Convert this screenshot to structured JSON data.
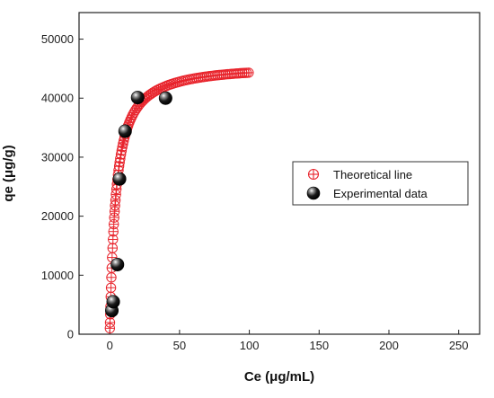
{
  "chart_data": {
    "type": "scatter",
    "xlabel": "Ce (μg/mL)",
    "ylabel": "qe (μg/g)",
    "xlim": [
      -22,
      265
    ],
    "ylim": [
      0,
      54500
    ],
    "x_ticks": [
      0,
      50,
      100,
      150,
      200,
      250
    ],
    "x_tick_labels": [
      "0",
      "50",
      "100",
      "150",
      "200",
      "250"
    ],
    "y_ticks": [
      0,
      10000,
      20000,
      30000,
      40000,
      50000
    ],
    "y_tick_labels": [
      "0",
      "10000",
      "20000",
      "30000",
      "40000",
      "50000"
    ],
    "grid": false,
    "legend_position": "center-right",
    "series": [
      {
        "name": "Theoretical line",
        "marker": "circle-plus",
        "color": "#e8242c",
        "x": [
          0.1,
          0.2,
          0.35,
          0.5,
          0.7,
          0.9,
          1.15,
          1.4,
          1.7,
          2.0,
          2.3,
          2.6,
          2.9,
          3.2,
          3.5,
          3.8,
          4.1,
          4.45,
          4.8,
          5.15,
          5.5,
          5.9,
          6.3,
          6.7,
          7.1,
          7.5,
          8.0,
          8.5,
          9.0,
          9.5,
          10,
          10.6,
          11.2,
          11.8,
          12.5,
          13.2,
          14,
          14.8,
          15.6,
          16.5,
          17.4,
          18.4,
          19.4,
          20.5,
          21.6,
          22.8,
          24,
          25.3,
          26.6,
          28,
          29.4,
          30.8,
          32.2,
          33.6,
          35,
          36.5,
          38,
          39.5,
          41,
          42.5,
          44,
          45.5,
          47,
          48.5,
          50,
          51.5,
          53,
          54.5,
          56,
          57.5,
          59,
          60.5,
          62,
          63.5,
          65,
          66.5,
          68,
          69.5,
          71,
          72.5,
          74,
          75.5,
          77,
          78.5,
          80,
          81.5,
          83,
          84.5,
          86,
          87.5,
          89,
          90.5,
          92,
          93.5,
          95,
          96.5,
          98,
          99.5
        ],
        "y": [
          1009,
          1978,
          3372,
          4696,
          6345,
          7875,
          9625,
          11239,
          13002,
          14603,
          16064,
          17402,
          18633,
          19769,
          20819,
          21794,
          22701,
          23682,
          24586,
          25421,
          26195,
          27018,
          27778,
          28483,
          29138,
          29749,
          30456,
          31106,
          31707,
          32263,
          32780,
          33352,
          33878,
          34364,
          34887,
          35366,
          35869,
          36326,
          36744,
          37172,
          37562,
          37958,
          38318,
          38679,
          39009,
          39336,
          39633,
          39927,
          40195,
          40458,
          40698,
          40919,
          41123,
          41312,
          41487,
          41661,
          41822,
          41972,
          42113,
          42244,
          42367,
          42483,
          42591,
          42694,
          42790,
          42881,
          42967,
          43048,
          43125,
          43198,
          43267,
          43333,
          43395,
          43455,
          43511,
          43565,
          43617,
          43666,
          43713,
          43758,
          43801,
          43842,
          43881,
          43919,
          43955,
          43990,
          44023,
          44055,
          44086,
          44116,
          44144,
          44171,
          44198,
          44223,
          44248,
          44271,
          44294,
          44316
        ]
      },
      {
        "name": "Experimental data",
        "marker": "sphere",
        "color": "#000000",
        "x": [
          1.5,
          2.5,
          5.5,
          7.0,
          11.0,
          20.0,
          40.0
        ],
        "y": [
          4000,
          5500,
          11800,
          26300,
          34400,
          40100,
          40000
        ]
      }
    ]
  }
}
